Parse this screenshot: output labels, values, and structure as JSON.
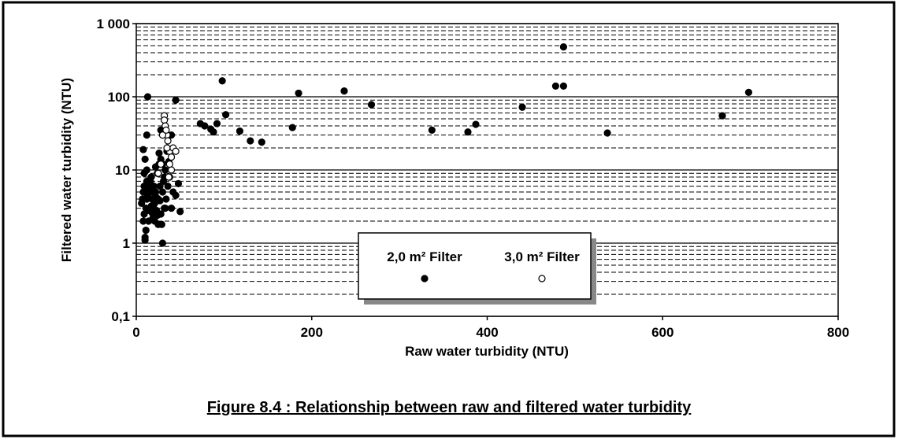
{
  "chart_data": {
    "type": "scatter",
    "title": "Figure 8.4 : Relationship between raw and filtered water turbidity",
    "x_label": "Raw water turbidity (NTU)",
    "y_label": "Filtered water turbidity (NTU)",
    "xlim": [
      0,
      800
    ],
    "xticks": [
      0,
      200,
      400,
      600,
      800
    ],
    "ylim": [
      0.1,
      1000
    ],
    "yticks": [
      {
        "value": 0.1,
        "label": "0,1"
      },
      1,
      10,
      100,
      {
        "value": 1000,
        "label": "1 000"
      }
    ],
    "y_log": true,
    "grid": true,
    "series": [
      {
        "name": "2,0 m² Filter",
        "color": "#000000",
        "marker": "filled",
        "x": [
          13,
          98,
          102,
          73,
          78,
          85,
          88,
          92,
          118,
          130,
          143,
          178,
          185,
          237,
          268,
          337,
          378,
          387,
          440,
          478,
          487,
          487,
          537,
          668,
          698,
          45,
          12,
          28,
          40,
          35,
          48,
          50,
          30,
          10,
          10,
          8,
          10,
          40,
          45,
          42,
          6,
          7,
          8,
          9,
          10,
          11,
          12,
          13,
          14,
          15,
          16,
          17,
          18,
          19,
          20,
          21,
          22,
          23,
          24,
          25,
          26,
          27,
          28,
          29,
          30,
          31,
          32,
          33,
          34,
          36,
          38,
          8,
          9,
          11,
          12,
          14,
          15,
          17,
          19,
          21,
          23,
          25,
          27,
          30,
          33,
          37,
          12,
          16,
          20,
          24,
          28,
          32,
          9,
          13,
          18,
          22,
          26
        ],
        "y": [
          100,
          165,
          57,
          43,
          40,
          36,
          33,
          43,
          34,
          25,
          24,
          38,
          112,
          120,
          78,
          35,
          33,
          42,
          72,
          140,
          140,
          480,
          32,
          55,
          115,
          90,
          30,
          35,
          30,
          18,
          6.5,
          2.7,
          1.0,
          1.2,
          1.1,
          19,
          14,
          3,
          4.5,
          5,
          3.5,
          4,
          5,
          2.5,
          6,
          3,
          7,
          4.5,
          2,
          5.5,
          3,
          8,
          4,
          2.2,
          6,
          3.5,
          5,
          2.8,
          9,
          4,
          12,
          6,
          2.5,
          1.8,
          5,
          7,
          3,
          10,
          4,
          6,
          8,
          2,
          9,
          1.5,
          4,
          2.8,
          6.5,
          3.2,
          5,
          2,
          4.2,
          1.8,
          3.8,
          12,
          3,
          13,
          10,
          7,
          3,
          2.4,
          14,
          8,
          6,
          5,
          2.6,
          11,
          17
        ]
      },
      {
        "name": "3,0 m² Filter",
        "color": "#000000",
        "marker": "open",
        "x": [
          32,
          32,
          33,
          35,
          36,
          38,
          40,
          40,
          38,
          35,
          42,
          30,
          28,
          25,
          45,
          34,
          37
        ],
        "y": [
          55,
          48,
          40,
          30,
          25,
          18,
          15,
          10,
          12,
          20,
          20,
          30,
          12,
          9,
          18,
          35,
          8
        ]
      }
    ]
  }
}
